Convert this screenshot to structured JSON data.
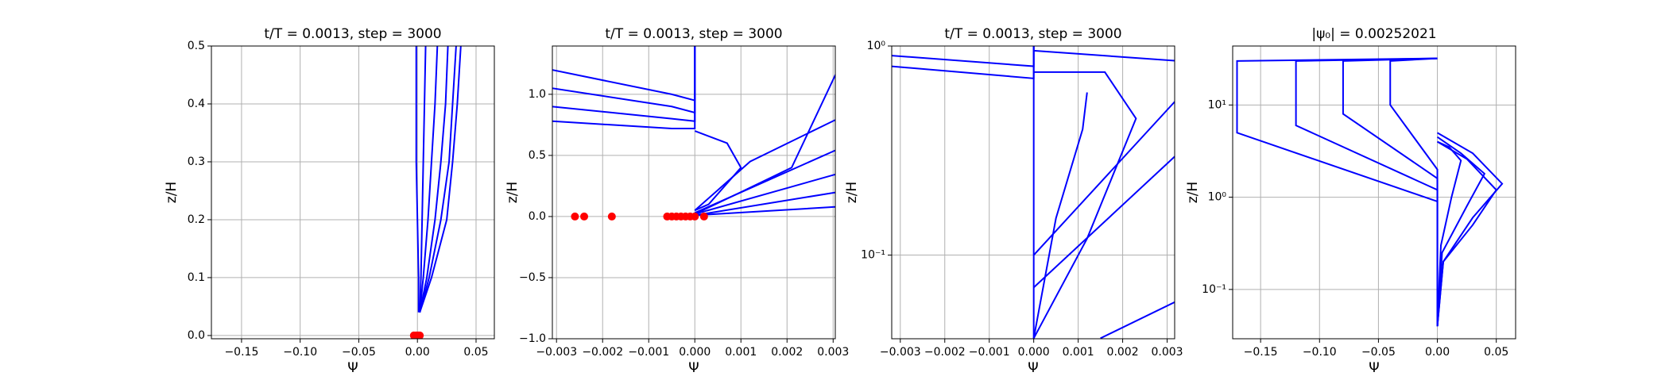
{
  "chart_data": [
    {
      "type": "line",
      "title": "t/T = 0.0013, step = 3000",
      "x_label": "Ψ",
      "y_label": "z/H",
      "grid": true,
      "log_y": false,
      "xlim": [
        -0.1757,
        0.0656
      ],
      "ylim": [
        -0.0056,
        0.5
      ],
      "xticks": [
        {
          "value": -0.15,
          "label": "−0.15"
        },
        {
          "value": -0.1,
          "label": "−0.10"
        },
        {
          "value": -0.05,
          "label": "−0.05"
        },
        {
          "value": 0,
          "label": "0.00"
        },
        0.05
      ],
      "yticks": [
        {
          "value": 0,
          "label": "0.0"
        },
        0.1,
        0.2,
        0.3,
        0.4,
        0.5
      ],
      "series": [
        {
          "color": "#0000ff",
          "x": [
            0.001,
            0.001,
            0.0,
            -0.001,
            -0.001,
            -0.001
          ],
          "values": [
            0.04,
            0.1,
            0.2,
            0.3,
            0.4,
            0.5
          ]
        },
        {
          "color": "#0000ff",
          "x": [
            0.002,
            0.003,
            0.004,
            0.005,
            0.006,
            0.007
          ],
          "values": [
            0.04,
            0.1,
            0.2,
            0.3,
            0.4,
            0.5
          ]
        },
        {
          "color": "#0000ff",
          "x": [
            0.002,
            0.005,
            0.009,
            0.012,
            0.015,
            0.017
          ],
          "values": [
            0.04,
            0.1,
            0.2,
            0.3,
            0.4,
            0.5
          ]
        },
        {
          "color": "#0000ff",
          "x": [
            0.002,
            0.008,
            0.015,
            0.02,
            0.024,
            0.026
          ],
          "values": [
            0.04,
            0.1,
            0.2,
            0.3,
            0.4,
            0.5
          ]
        },
        {
          "color": "#0000ff",
          "x": [
            0.002,
            0.01,
            0.02,
            0.027,
            0.03,
            0.033
          ],
          "values": [
            0.04,
            0.1,
            0.2,
            0.3,
            0.4,
            0.5
          ]
        },
        {
          "color": "#0000ff",
          "x": [
            0.002,
            0.012,
            0.025,
            0.03,
            0.034,
            0.037
          ],
          "values": [
            0.04,
            0.1,
            0.2,
            0.3,
            0.4,
            0.5
          ]
        }
      ],
      "scatter": {
        "color": "#ff0000",
        "x": [
          -0.003,
          -0.001,
          0,
          0.001,
          0.002
        ],
        "values": [
          0,
          0,
          0,
          0,
          0
        ]
      }
    },
    {
      "type": "line",
      "title": "t/T = 0.0013, step = 3000",
      "x_label": "Ψ",
      "y_label": "z/H",
      "grid": true,
      "log_y": false,
      "xlim": [
        -0.00309,
        0.003047
      ],
      "ylim": [
        -1.0,
        1.395
      ],
      "xticks": [
        {
          "value": -0.003,
          "label": "−0.003"
        },
        {
          "value": -0.002,
          "label": "−0.002"
        },
        {
          "value": -0.001,
          "label": "−0.001"
        },
        {
          "value": 0,
          "label": "0.000"
        },
        0.001,
        0.002,
        0.003
      ],
      "yticks": [
        {
          "value": -1,
          "label": "−1.0"
        },
        {
          "value": -0.5,
          "label": "−0.5"
        },
        {
          "value": 0,
          "label": "0.0"
        },
        0.5,
        {
          "value": 1,
          "label": "1.0"
        }
      ],
      "series": [
        {
          "color": "#0000ff",
          "x": [
            -0.0031,
            -0.0005,
            0,
            0
          ],
          "values": [
            0.78,
            0.72,
            0.72,
            1.4
          ]
        },
        {
          "color": "#0000ff",
          "x": [
            -0.0031,
            -0.0005,
            0,
            0
          ],
          "values": [
            0.9,
            0.8,
            0.78,
            1.4
          ]
        },
        {
          "color": "#0000ff",
          "x": [
            -0.0031,
            -0.0005,
            0,
            0
          ],
          "values": [
            1.05,
            0.9,
            0.85,
            1.4
          ]
        },
        {
          "color": "#0000ff",
          "x": [
            -0.0031,
            -0.0005,
            0,
            0
          ],
          "values": [
            1.2,
            1.0,
            0.95,
            1.4
          ]
        },
        {
          "color": "#0000ff",
          "x": [
            0,
            0.0007,
            0.001,
            0.0003,
            0
          ],
          "values": [
            0.7,
            0.6,
            0.4,
            0.1,
            0.05
          ]
        },
        {
          "color": "#0000ff",
          "x": [
            0,
            0.001,
            0.0021,
            0.0031
          ],
          "values": [
            0.02,
            0.2,
            0.4,
            1.2
          ]
        },
        {
          "color": "#0000ff",
          "x": [
            0,
            0.0012,
            0.0031
          ],
          "values": [
            0.05,
            0.45,
            0.8
          ]
        },
        {
          "color": "#0000ff",
          "x": [
            0,
            0.0031
          ],
          "values": [
            0.03,
            0.55
          ]
        },
        {
          "color": "#0000ff",
          "x": [
            0,
            0.0031
          ],
          "values": [
            0.02,
            0.35
          ]
        },
        {
          "color": "#0000ff",
          "x": [
            0,
            0.0031
          ],
          "values": [
            0.01,
            0.2
          ]
        },
        {
          "color": "#0000ff",
          "x": [
            0,
            0.0031
          ],
          "values": [
            0.01,
            0.08
          ]
        }
      ],
      "scatter": {
        "color": "#ff0000",
        "x": [
          -0.0026,
          -0.0024,
          -0.0018,
          -0.0006,
          -0.0005,
          -0.0004,
          -0.0003,
          -0.0002,
          -0.0001,
          0,
          0.0002
        ],
        "values": [
          0,
          0,
          0,
          0,
          0,
          0,
          0,
          0,
          0,
          0,
          0
        ]
      }
    },
    {
      "type": "line",
      "title": "t/T = 0.0013, step = 3000",
      "x_label": "Ψ",
      "y_label": "z/H",
      "grid": true,
      "log_y": true,
      "xlim": [
        -0.003193,
        0.003169
      ],
      "ylim": [
        0.0398,
        1
      ],
      "xticks": [
        {
          "value": -0.003,
          "label": "−0.003"
        },
        {
          "value": -0.002,
          "label": "−0.002"
        },
        {
          "value": -0.001,
          "label": "−0.001"
        },
        {
          "value": 0,
          "label": "0.000"
        },
        0.001,
        0.002,
        0.003
      ],
      "yticks": [
        {
          "value": 0.1,
          "label": "10⁻¹"
        },
        {
          "value": 1,
          "label": "10⁰"
        }
      ],
      "series": [
        {
          "color": "#0000ff",
          "x": [
            0,
            0
          ],
          "values": [
            0.0398,
            1
          ]
        },
        {
          "color": "#0000ff",
          "x": [
            -0.0032,
            0,
            0
          ],
          "values": [
            0.8,
            0.7,
            1
          ]
        },
        {
          "color": "#0000ff",
          "x": [
            -0.0032,
            0,
            0
          ],
          "values": [
            0.9,
            0.8,
            1
          ]
        },
        {
          "color": "#0000ff",
          "x": [
            0,
            0.0005,
            0.0011,
            0.0012
          ],
          "values": [
            0.04,
            0.15,
            0.4,
            0.6
          ]
        },
        {
          "color": "#0000ff",
          "x": [
            0,
            0.0012,
            0.0023,
            0.0016,
            0
          ],
          "values": [
            0.04,
            0.12,
            0.45,
            0.75,
            0.75
          ]
        },
        {
          "color": "#0000ff",
          "x": [
            0,
            0.0032
          ],
          "values": [
            0.07,
            0.3
          ]
        },
        {
          "color": "#0000ff",
          "x": [
            0,
            0.0032
          ],
          "values": [
            0.1,
            0.55
          ]
        },
        {
          "color": "#0000ff",
          "x": [
            0,
            0.0032
          ],
          "values": [
            0.95,
            0.85
          ]
        },
        {
          "color": "#0000ff",
          "x": [
            0.0015,
            0.0032
          ],
          "values": [
            0.04,
            0.06
          ]
        }
      ]
    },
    {
      "type": "line",
      "title": "|ψ₀| = 0.00252021",
      "x_label": "Ψ",
      "y_label": "z/H",
      "grid": true,
      "log_y": true,
      "xlim": [
        -0.1737,
        0.0664
      ],
      "ylim": [
        0.0292,
        43.6
      ],
      "xticks": [
        {
          "value": -0.15,
          "label": "−0.15"
        },
        {
          "value": -0.1,
          "label": "−0.10"
        },
        {
          "value": -0.05,
          "label": "−0.05"
        },
        {
          "value": 0,
          "label": "0.00"
        },
        0.05
      ],
      "yticks": [
        {
          "value": 0.1,
          "label": "10⁻¹"
        },
        {
          "value": 1,
          "label": "10⁰"
        },
        {
          "value": 10,
          "label": "10¹"
        }
      ],
      "series": [
        {
          "color": "#0000ff",
          "x": [
            0,
            0,
            -0.17,
            -0.17,
            0
          ],
          "values": [
            0.04,
            0.9,
            5,
            30,
            32
          ]
        },
        {
          "color": "#0000ff",
          "x": [
            0,
            0,
            -0.12,
            -0.12,
            0
          ],
          "values": [
            0.04,
            1.2,
            6,
            30,
            32
          ]
        },
        {
          "color": "#0000ff",
          "x": [
            0,
            0,
            -0.08,
            -0.08,
            0
          ],
          "values": [
            0.04,
            1.6,
            8,
            30,
            32
          ]
        },
        {
          "color": "#0000ff",
          "x": [
            0,
            0,
            -0.04,
            -0.04,
            0
          ],
          "values": [
            0.04,
            2,
            10,
            30,
            32
          ]
        },
        {
          "color": "#0000ff",
          "x": [
            0,
            0.005,
            0.03,
            0.055,
            0.03,
            0
          ],
          "values": [
            0.04,
            0.2,
            0.6,
            1.4,
            3,
            5
          ]
        },
        {
          "color": "#0000ff",
          "x": [
            0,
            0.005,
            0.03,
            0.05,
            0.025,
            0
          ],
          "values": [
            0.04,
            0.2,
            0.5,
            1.2,
            2.6,
            4
          ]
        },
        {
          "color": "#0000ff",
          "x": [
            0,
            0.004,
            0.025,
            0.04,
            0.02,
            0
          ],
          "values": [
            0.04,
            0.25,
            0.8,
            1.8,
            3,
            4.5
          ]
        },
        {
          "color": "#0000ff",
          "x": [
            0,
            0.003,
            0.012,
            0.02,
            0.01,
            0
          ],
          "values": [
            0.04,
            0.3,
            1,
            2.5,
            3.5,
            4
          ]
        }
      ]
    }
  ]
}
